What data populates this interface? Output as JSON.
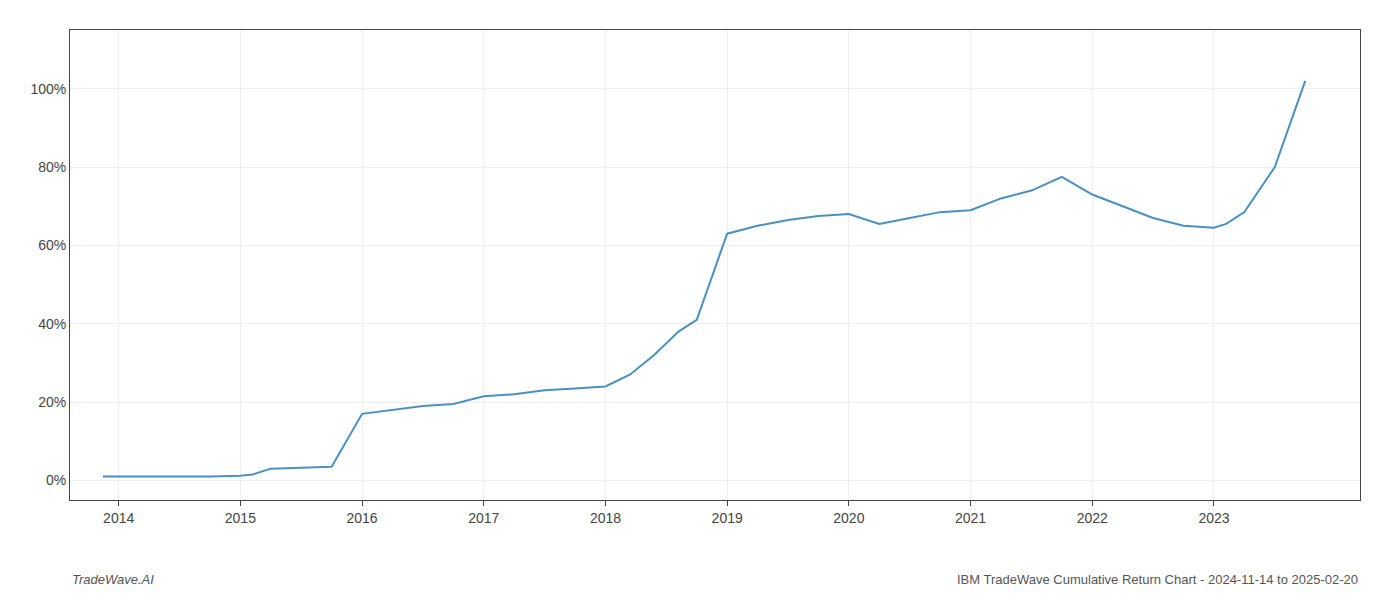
{
  "chart_data": {
    "type": "line",
    "x": [
      2013.87,
      2014.0,
      2014.2,
      2014.5,
      2014.75,
      2015.0,
      2015.1,
      2015.25,
      2015.5,
      2015.75,
      2016.0,
      2016.25,
      2016.5,
      2016.75,
      2017.0,
      2017.25,
      2017.5,
      2017.75,
      2018.0,
      2018.2,
      2018.4,
      2018.6,
      2018.75,
      2019.0,
      2019.25,
      2019.5,
      2019.75,
      2020.0,
      2020.25,
      2020.5,
      2020.75,
      2021.0,
      2021.25,
      2021.5,
      2021.75,
      2022.0,
      2022.25,
      2022.5,
      2022.75,
      2023.0,
      2023.1,
      2023.25,
      2023.5,
      2023.75
    ],
    "values": [
      1.0,
      1.0,
      1.0,
      1.0,
      1.0,
      1.2,
      1.5,
      3.0,
      3.2,
      3.5,
      17.0,
      18.0,
      19.0,
      19.5,
      21.5,
      22.0,
      23.0,
      23.5,
      24.0,
      27.0,
      32.0,
      38.0,
      41.0,
      63.0,
      65.0,
      66.5,
      67.5,
      68.0,
      65.5,
      67.0,
      68.5,
      69.0,
      72.0,
      74.0,
      77.5,
      73.0,
      70.0,
      67.0,
      65.0,
      64.5,
      65.5,
      68.5,
      80.0,
      102.0
    ],
    "color": "#4a90c4",
    "xlim": [
      2013.6,
      2024.2
    ],
    "xticks": [
      2014,
      2015,
      2016,
      2017,
      2018,
      2019,
      2020,
      2021,
      2022,
      2023
    ],
    "ylim": [
      -5,
      115
    ],
    "yticks": [
      {
        "value": 0,
        "label": "0%"
      },
      {
        "value": 20,
        "label": "20%"
      },
      {
        "value": 40,
        "label": "40%"
      },
      {
        "value": 60,
        "label": "60%"
      },
      {
        "value": 80,
        "label": "80%"
      },
      {
        "value": 100,
        "label": "100%"
      }
    ],
    "grid": true,
    "annotations": [
      "TradeWave.AI",
      "IBM TradeWave Cumulative Return Chart - 2024-11-14 to 2025-02-20"
    ]
  }
}
